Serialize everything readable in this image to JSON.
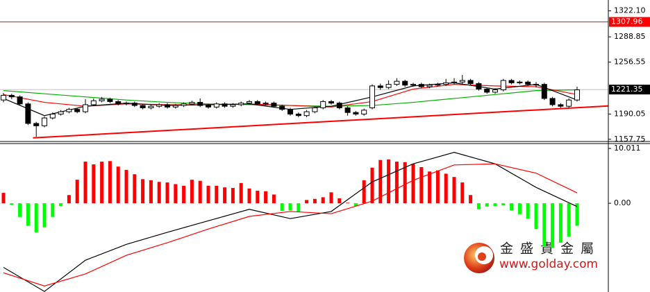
{
  "chart_data": [
    {
      "type": "candlestick",
      "ylim": [
        1154,
        1336
      ],
      "yticks": [
        1157.75,
        1190.05,
        1256.55,
        1288.85,
        {
          "value": 1322.1,
          "label": "1322.10"
        }
      ],
      "candle_colors": {
        "up": "#ffffff",
        "down": "#000000",
        "outline": "#000000"
      },
      "open": [
        1208,
        1214,
        1212,
        1203,
        1178,
        1175,
        1185,
        1190,
        1193,
        1196,
        1193,
        1202,
        1207,
        1209,
        1206,
        1203,
        1204,
        1201,
        1198,
        1200,
        1202,
        1199,
        1201,
        1203,
        1205,
        1201,
        1199,
        1203,
        1200,
        1202,
        1204,
        1206,
        1203,
        1204,
        1200,
        1196,
        1190,
        1188,
        1193,
        1198,
        1206,
        1204,
        1198,
        1192,
        1190,
        1198,
        1226,
        1224,
        1228,
        1232,
        1227,
        1228,
        1225,
        1227,
        1228,
        1230,
        1231,
        1233,
        1229,
        1222,
        1218,
        1221,
        1233,
        1230,
        1231,
        1228,
        1228,
        1210,
        1202,
        1200,
        1208
      ],
      "high": [
        1217,
        1216,
        1214,
        1205,
        1180,
        1187,
        1192,
        1195,
        1198,
        1198,
        1209,
        1210,
        1212,
        1211,
        1208,
        1206,
        1206,
        1203,
        1202,
        1204,
        1204,
        1203,
        1205,
        1207,
        1210,
        1203,
        1205,
        1205,
        1204,
        1206,
        1208,
        1208,
        1206,
        1206,
        1202,
        1198,
        1192,
        1195,
        1200,
        1208,
        1208,
        1206,
        1200,
        1194,
        1197,
        1228,
        1229,
        1233,
        1236,
        1234,
        1230,
        1230,
        1229,
        1230,
        1235,
        1236,
        1240,
        1235,
        1231,
        1224,
        1223,
        1235,
        1235,
        1233,
        1233,
        1231,
        1230,
        1212,
        1204,
        1210,
        1225
      ],
      "low": [
        1205,
        1209,
        1201,
        1176,
        1161,
        1173,
        1183,
        1188,
        1191,
        1191,
        1191,
        1200,
        1205,
        1204,
        1201,
        1201,
        1199,
        1196,
        1196,
        1198,
        1197,
        1197,
        1199,
        1201,
        1199,
        1197,
        1197,
        1198,
        1198,
        1200,
        1202,
        1201,
        1201,
        1198,
        1194,
        1188,
        1186,
        1186,
        1191,
        1196,
        1202,
        1196,
        1188,
        1188,
        1188,
        1196,
        1221,
        1222,
        1226,
        1225,
        1225,
        1223,
        1223,
        1225,
        1226,
        1228,
        1229,
        1227,
        1220,
        1216,
        1216,
        1219,
        1228,
        1228,
        1226,
        1224,
        1208,
        1200,
        1198,
        1198,
        1206
      ],
      "close": [
        1214,
        1212,
        1203,
        1178,
        1175,
        1185,
        1190,
        1193,
        1196,
        1193,
        1202,
        1207,
        1209,
        1206,
        1203,
        1204,
        1201,
        1198,
        1200,
        1202,
        1199,
        1201,
        1203,
        1205,
        1201,
        1199,
        1203,
        1200,
        1202,
        1204,
        1206,
        1203,
        1204,
        1200,
        1196,
        1190,
        1188,
        1193,
        1198,
        1206,
        1204,
        1198,
        1192,
        1190,
        1195,
        1226,
        1224,
        1228,
        1232,
        1227,
        1228,
        1225,
        1227,
        1228,
        1230,
        1231,
        1233,
        1229,
        1222,
        1218,
        1221,
        1233,
        1230,
        1231,
        1228,
        1228,
        1210,
        1202,
        1200,
        1208,
        1221
      ],
      "lines": [
        {
          "color": "#00b000",
          "x": [
            0,
            5,
            10,
            15,
            20,
            25,
            30,
            35,
            40,
            45,
            50,
            55,
            60,
            65,
            70
          ],
          "values": [
            1220,
            1216,
            1212,
            1208,
            1205,
            1203,
            1202,
            1201,
            1200,
            1201,
            1205,
            1210,
            1215,
            1220,
            1221
          ]
        },
        {
          "color": "#ff0000",
          "x": [
            0,
            5,
            10,
            15,
            20,
            25,
            30,
            35,
            40,
            45,
            50,
            55,
            60,
            65,
            70
          ],
          "values": [
            1215,
            1205,
            1200,
            1203,
            1202,
            1202,
            1203,
            1201,
            1199,
            1206,
            1222,
            1228,
            1226,
            1225,
            1215
          ]
        },
        {
          "color": "#000000",
          "x": [
            0,
            5,
            10,
            15,
            20,
            25,
            30,
            35,
            40,
            45,
            50,
            55,
            60,
            65,
            70
          ],
          "values": [
            1210,
            1188,
            1200,
            1204,
            1201,
            1202,
            1203,
            1196,
            1200,
            1212,
            1226,
            1230,
            1222,
            1228,
            1208
          ]
        }
      ],
      "trendline": {
        "color": "#ff0000",
        "x": [
          3.6,
          73.8
        ],
        "values": [
          1159.5,
          1200.4
        ]
      },
      "price_lines": [
        {
          "value": 1307.96,
          "color": "#ff0000",
          "label_bg": "#ff0000"
        },
        {
          "value": 1221.35,
          "color": "#c0c0c0",
          "label_bg": "#000000"
        }
      ]
    },
    {
      "type": "macd",
      "ylim": [
        -16.2,
        10.9
      ],
      "yticks": [
        10.011,
        {
          "value": 0,
          "label": "0.00"
        }
      ],
      "colors": {
        "up": "#ff0000",
        "down": "#00ff00"
      },
      "values": [
        1.9,
        -0.3,
        -2.5,
        -4.1,
        -5.3,
        -4.4,
        -2.5,
        -0.5,
        1.5,
        4.3,
        7.6,
        7.1,
        7.6,
        7.7,
        6.7,
        6.1,
        5.3,
        4.4,
        4.2,
        3.9,
        3.8,
        3.5,
        3.2,
        4.3,
        4.1,
        3.2,
        3.2,
        2.9,
        2.8,
        3.7,
        2.7,
        2.3,
        2.2,
        1.6,
        -1.4,
        -1.3,
        -1.6,
        0.6,
        0.8,
        1.1,
        2.0,
        0.9,
        0.1,
        -0.5,
        4.2,
        6.5,
        7.9,
        8.0,
        7.6,
        7.5,
        7.2,
        6.6,
        5.8,
        6.0,
        5.4,
        4.8,
        3.8,
        1.5,
        -1.1,
        -0.6,
        -0.5,
        -0.4,
        -1.3,
        -2.0,
        -2.8,
        -4.7,
        -7.9,
        -8.1,
        -7.2,
        -6.1,
        -4.1
      ],
      "lines": [
        {
          "color": "#000000",
          "x": [
            0,
            5,
            10,
            15,
            20,
            25,
            30,
            35,
            40,
            45,
            50,
            55,
            60,
            65,
            70
          ],
          "values": [
            -11.7,
            -16.1,
            -10.4,
            -7.5,
            -5.3,
            -3.2,
            -1.1,
            -2.8,
            -1.5,
            3.9,
            7.2,
            9.3,
            7.2,
            2.9,
            -0.6
          ]
        },
        {
          "color": "#ff0000",
          "x": [
            0,
            5,
            10,
            15,
            20,
            25,
            30,
            35,
            40,
            45,
            50,
            55,
            60,
            65,
            70
          ],
          "values": [
            -12.7,
            -15.1,
            -12.9,
            -9.5,
            -7.2,
            -4.7,
            -2.4,
            -1.5,
            -1.9,
            0.4,
            4.2,
            7.0,
            7.2,
            5.5,
            1.9
          ]
        }
      ],
      "watermark": {
        "title": "金 盛 貴 金 屬",
        "url": "www.golday.com"
      }
    }
  ]
}
